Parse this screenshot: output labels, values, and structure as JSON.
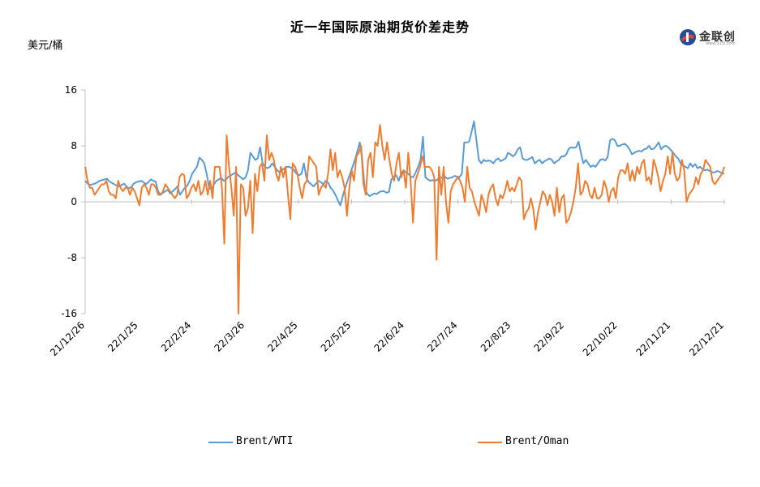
{
  "title": "近一年国际原油期货价差走势",
  "brand": {
    "name": "金联创",
    "url": "www.315i.com"
  },
  "chart_data": {
    "type": "line",
    "ylabel": "美元/桶",
    "xlabel": "",
    "ylim": [
      -16,
      16
    ],
    "yticks": [
      16,
      8,
      0,
      -8,
      -16
    ],
    "x_start": "21/12/26",
    "x_end": "22/12/21",
    "xticks": [
      "21/12/26",
      "22/1/25",
      "22/2/24",
      "22/3/26",
      "22/4/25",
      "22/5/25",
      "22/6/24",
      "22/7/24",
      "22/8/23",
      "22/9/22",
      "22/10/22",
      "22/11/21",
      "22/12/21"
    ],
    "legend_position": "bottom",
    "grid": false,
    "series": [
      {
        "name": "Brent/WTI",
        "color": "#5B9BD5",
        "values": [
          3.0,
          2.6,
          2.4,
          2.5,
          2.6,
          2.8,
          3.0,
          3.1,
          3.2,
          3.3,
          2.9,
          2.7,
          2.5,
          2.3,
          2.2,
          2.4,
          2.6,
          2.2,
          1.9,
          2.1,
          2.6,
          2.8,
          2.9,
          3.0,
          2.8,
          2.5,
          2.8,
          3.2,
          3.0,
          2.9,
          1.5,
          1.0,
          1.3,
          1.5,
          1.7,
          1.2,
          1.5,
          1.8,
          2.2,
          1.0,
          1.5,
          2.0,
          2.3,
          3.0,
          4.0,
          4.5,
          5.0,
          6.3,
          6.0,
          5.5,
          4.0,
          2.0,
          1.8,
          2.5,
          3.0,
          3.2,
          3.4,
          3.0,
          3.2,
          3.6,
          3.8,
          4.0,
          4.2,
          3.8,
          3.5,
          3.2,
          3.5,
          4.5,
          7.0,
          6.5,
          6.0,
          6.2,
          7.8,
          5.5,
          5.0,
          4.8,
          5.0,
          5.5,
          5.0,
          4.5,
          4.2,
          4.5,
          4.8,
          5.0,
          5.0,
          4.8,
          4.5,
          4.0,
          3.8,
          4.0,
          5.5,
          3.5,
          2.8,
          2.5,
          2.2,
          2.6,
          3.0,
          2.8,
          2.5,
          3.0,
          2.7,
          2.0,
          1.6,
          1.0,
          0.2,
          -0.5,
          0.8,
          2.0,
          3.0,
          4.0,
          5.0,
          6.0,
          7.2,
          8.5,
          6.0,
          2.0,
          1.2,
          0.8,
          1.0,
          1.2,
          1.1,
          1.4,
          1.5,
          1.5,
          1.3,
          1.4,
          3.2,
          3.5,
          3.8,
          3.0,
          4.0,
          4.5,
          4.2,
          4.0,
          3.6,
          3.5,
          4.2,
          5.0,
          6.0,
          9.3,
          3.5,
          3.2,
          3.0,
          3.1,
          3.0,
          3.2,
          3.5,
          3.4,
          3.6,
          3.3,
          3.4,
          3.5,
          3.7,
          3.6,
          3.5,
          4.0,
          8.5,
          8.5,
          8.6,
          10.0,
          11.5,
          8.8,
          6.0,
          5.5,
          6.0,
          5.8,
          5.9,
          5.8,
          5.5,
          6.0,
          6.2,
          5.8,
          6.0,
          6.2,
          7.0,
          6.8,
          6.5,
          6.8,
          7.5,
          7.8,
          6.2,
          6.0,
          6.0,
          6.2,
          6.4,
          5.5,
          5.8,
          6.0,
          5.5,
          5.8,
          6.0,
          6.2,
          6.0,
          5.5,
          5.8,
          6.0,
          6.5,
          6.5,
          6.8,
          7.6,
          7.8,
          7.7,
          7.8,
          8.6,
          7.0,
          5.5,
          6.0,
          5.5,
          5.0,
          5.2,
          5.0,
          5.5,
          6.0,
          6.1,
          5.9,
          6.4,
          8.8,
          9.0,
          8.8,
          8.0,
          8.0,
          8.2,
          8.3,
          8.0,
          7.5,
          6.8,
          7.0,
          7.2,
          7.3,
          7.2,
          7.5,
          7.6,
          8.0,
          7.5,
          7.6,
          8.0,
          8.5,
          7.5,
          7.9,
          8.0,
          7.8,
          7.4,
          7.0,
          6.5,
          6.2,
          5.5,
          5.2,
          5.0,
          4.8,
          5.5,
          5.0,
          5.4,
          4.8,
          5.0,
          4.7,
          4.5,
          4.6,
          4.4,
          4.2,
          4.2,
          4.4,
          4.3,
          4.1,
          4.0
        ]
      },
      {
        "name": "Brent/Oman",
        "color": "#ED7D31",
        "values": [
          5.0,
          3.0,
          2.0,
          2.0,
          1.0,
          1.5,
          2.0,
          2.5,
          2.5,
          3.0,
          1.5,
          1.0,
          1.0,
          0.5,
          3.0,
          2.0,
          1.5,
          2.0,
          2.0,
          1.0,
          2.0,
          1.5,
          0.5,
          -0.5,
          2.0,
          2.5,
          2.0,
          1.0,
          2.5,
          2.5,
          2.0,
          1.0,
          1.0,
          1.5,
          2.5,
          2.0,
          1.5,
          1.0,
          0.5,
          1.0,
          3.5,
          4.0,
          3.8,
          0.5,
          1.0,
          2.0,
          2.5,
          1.5,
          3.0,
          1.0,
          1.5,
          3.0,
          1.0,
          3.0,
          0.5,
          5.0,
          5.0,
          5.0,
          2.0,
          -6.0,
          9.5,
          5.0,
          2.0,
          -2.0,
          5.0,
          -16.0,
          2.5,
          2.0,
          -2.0,
          -1.0,
          3.0,
          -4.5,
          4.0,
          1.5,
          5.0,
          5.5,
          3.0,
          9.5,
          6.0,
          7.0,
          6.0,
          4.0,
          3.0,
          5.0,
          3.5,
          5.0,
          1.0,
          -2.5,
          5.5,
          5.0,
          4.0,
          2.0,
          0.5,
          2.5,
          3.0,
          6.5,
          6.0,
          5.5,
          5.0,
          1.0,
          2.0,
          2.5,
          2.0,
          4.0,
          7.5,
          4.5,
          7.0,
          3.5,
          4.5,
          3.5,
          2.0,
          -2.0,
          2.0,
          4.5,
          3.0,
          6.5,
          7.0,
          8.0,
          2.5,
          1.0,
          6.0,
          7.0,
          3.5,
          8.5,
          8.0,
          11.0,
          8.0,
          6.0,
          8.5,
          6.0,
          4.0,
          3.0,
          5.5,
          7.0,
          3.5,
          4.5,
          2.0,
          7.0,
          3.0,
          -3.0,
          3.0,
          4.0,
          5.0,
          6.5,
          5.0,
          5.0,
          5.0,
          4.5,
          3.5,
          -8.3,
          5.0,
          1.0,
          5.0,
          0.0,
          -3.0,
          1.5,
          2.5,
          3.0,
          3.5,
          3.0,
          2.0,
          0.0,
          5.0,
          2.0,
          1.5,
          0.0,
          -1.0,
          -2.0,
          1.0,
          0.0,
          -1.5,
          1.0,
          2.0,
          2.5,
          0.5,
          -0.5,
          1.0,
          0.5,
          1.5,
          3.0,
          1.5,
          2.0,
          1.5,
          2.5,
          3.5,
          3.0,
          -2.5,
          -1.5,
          -1.0,
          0.5,
          -1.0,
          -4.0,
          -1.5,
          0.0,
          1.5,
          1.0,
          -0.5,
          1.0,
          0.0,
          -2.0,
          2.0,
          -1.5,
          0.5,
          1.0,
          -3.0,
          -2.5,
          -1.5,
          0.0,
          2.0,
          5.5,
          1.0,
          1.5,
          3.0,
          2.5,
          1.0,
          0.5,
          2.0,
          0.5,
          0.5,
          1.0,
          3.0,
          2.0,
          0.0,
          1.5,
          2.0,
          0.5,
          3.5,
          4.5,
          4.5,
          4.0,
          5.5,
          3.0,
          4.5,
          3.0,
          5.0,
          4.0,
          5.5,
          6.0,
          3.0,
          3.5,
          2.5,
          6.0,
          5.0,
          3.5,
          1.5,
          3.0,
          4.0,
          6.5,
          4.0,
          7.0,
          4.0,
          3.0,
          3.5,
          6.0,
          4.5,
          0.0,
          1.0,
          1.5,
          2.0,
          3.5,
          2.5,
          4.0,
          4.5,
          6.0,
          5.5,
          5.0,
          3.0,
          2.5,
          3.0,
          3.5,
          4.0,
          5.0
        ]
      }
    ]
  }
}
